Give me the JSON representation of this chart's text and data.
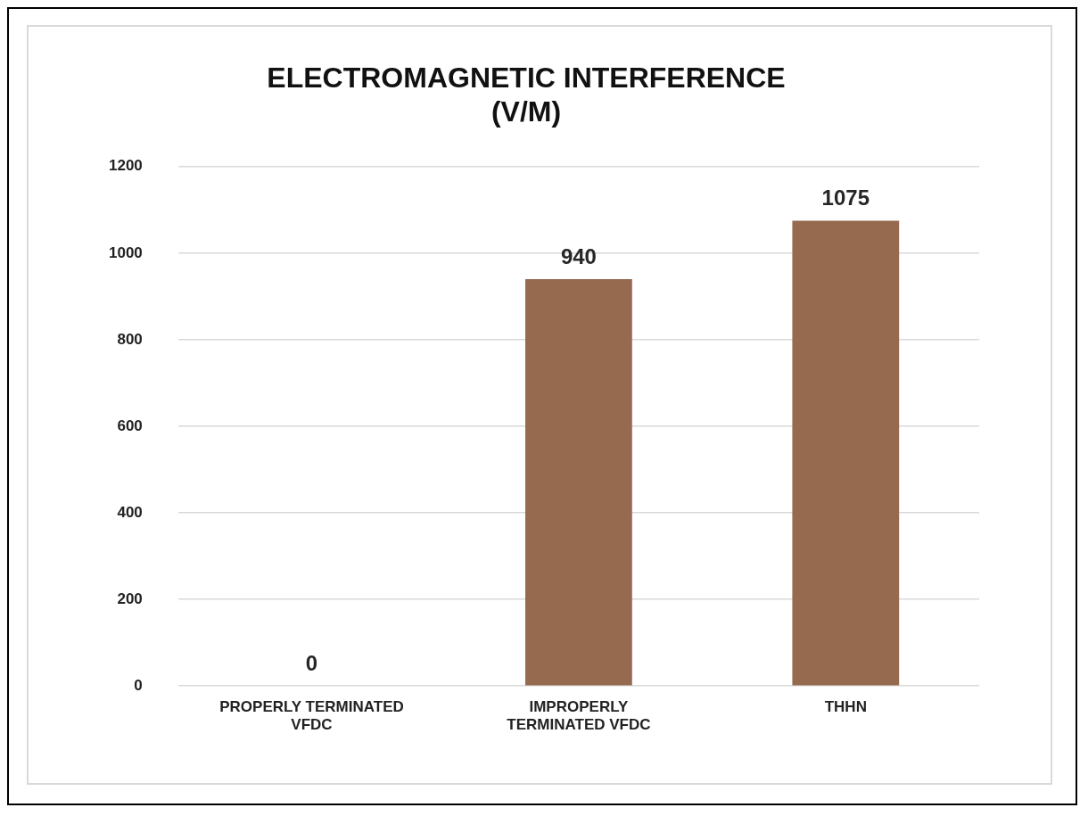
{
  "chart_data": {
    "type": "bar",
    "title": "ELECTROMAGNETIC INTERFERENCE\n(V/M)",
    "categories": [
      "PROPERLY TERMINATED VFDC",
      "IMPROPERLY TERMINATED VFDC",
      "THHN"
    ],
    "values": [
      0,
      940,
      1075
    ],
    "color": "#956a4f",
    "ylim": [
      0,
      1200
    ],
    "yticks": [
      0,
      200,
      400,
      600,
      800,
      1000,
      1200
    ],
    "grid": "y",
    "data_labels": true
  }
}
